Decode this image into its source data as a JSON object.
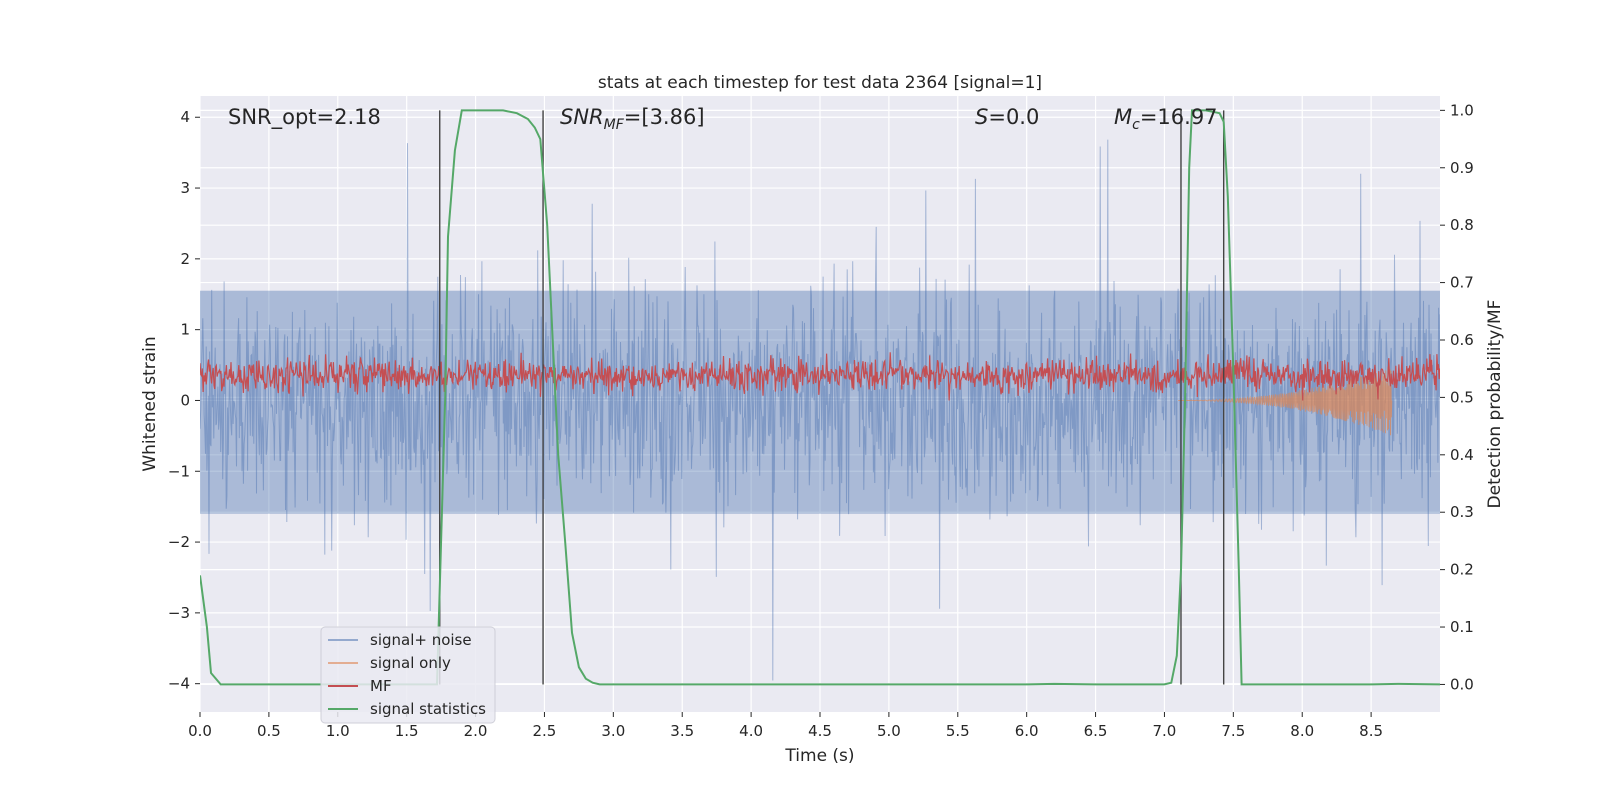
{
  "chart_data": {
    "type": "line",
    "title": "stats at each timestep for test data 2364 [signal=1]",
    "xlabel": "Time (s)",
    "ylabel": "Whitened strain",
    "y2label": "Detection probability/MF",
    "xlim": [
      0.0,
      9.0
    ],
    "ylim": [
      -4.4,
      4.3
    ],
    "y2lim": [
      -0.048,
      1.025
    ],
    "xticks": [
      "0.0",
      "0.5",
      "1.0",
      "1.5",
      "2.0",
      "2.5",
      "3.0",
      "3.5",
      "4.0",
      "4.5",
      "5.0",
      "5.5",
      "6.0",
      "6.5",
      "7.0",
      "7.5",
      "8.0",
      "8.5"
    ],
    "yticks": [
      "4",
      "3",
      "2",
      "1",
      "0",
      "−1",
      "−2",
      "−3",
      "−4"
    ],
    "y2ticks": [
      "1.0",
      "0.9",
      "0.8",
      "0.7",
      "0.6",
      "0.5",
      "0.4",
      "0.3",
      "0.2",
      "0.1",
      "0.0"
    ],
    "grid": true,
    "legend_position": "lower-left",
    "annotations": {
      "snr_opt": "SNR_opt=2.18",
      "snr_mf_main": "SNR",
      "snr_mf_sub": "MF",
      "snr_mf_rest": "=[3.86]",
      "s_main": "S",
      "s_rest": "=0.0",
      "mc_main": "M",
      "mc_sub": "c",
      "mc_rest": "=16.97"
    },
    "vlines_x": [
      1.74,
      2.49,
      7.12,
      7.43
    ],
    "series": [
      {
        "name": "signal+ noise",
        "color": "#4C72B0",
        "kind": "noise",
        "approx_amplitude": 1.6,
        "peak_amplitude": 3.7
      },
      {
        "name": "signal only",
        "color": "#DD8452",
        "kind": "chirp",
        "start_x": 7.1,
        "end_x": 8.65,
        "peak_amplitude": 0.5
      },
      {
        "name": "MF",
        "color": "#C44E52",
        "kind": "noise-band",
        "min": 0.0,
        "max": 0.85,
        "mean": 0.35
      },
      {
        "name": "signal statistics",
        "color": "#55A868",
        "axis": "right",
        "x": [
          0.0,
          0.05,
          0.08,
          0.15,
          0.3,
          0.5,
          1.0,
          1.5,
          1.72,
          1.78,
          1.8,
          1.85,
          1.9,
          2.0,
          2.2,
          2.3,
          2.38,
          2.43,
          2.47,
          2.52,
          2.56,
          2.6,
          2.65,
          2.7,
          2.75,
          2.8,
          2.85,
          2.9,
          3.0,
          4.0,
          5.0,
          6.0,
          6.2,
          6.5,
          7.0,
          7.05,
          7.09,
          7.12,
          7.15,
          7.18,
          7.2,
          7.3,
          7.4,
          7.43,
          7.46,
          7.5,
          7.54,
          7.56,
          7.6,
          8.0,
          8.5,
          8.7,
          9.0
        ],
        "y": [
          0.19,
          0.1,
          0.02,
          0.0,
          0.0,
          0.0,
          0.0,
          0.0,
          0.0,
          0.5,
          0.78,
          0.93,
          1.0,
          1.0,
          1.0,
          0.995,
          0.985,
          0.97,
          0.95,
          0.8,
          0.6,
          0.4,
          0.25,
          0.09,
          0.03,
          0.01,
          0.003,
          0.0,
          0.0,
          0.0,
          0.0,
          0.0,
          0.001,
          0.0,
          0.0,
          0.003,
          0.05,
          0.2,
          0.5,
          0.9,
          1.0,
          1.0,
          0.995,
          0.98,
          0.85,
          0.55,
          0.2,
          0.0,
          0.0,
          0.0,
          0.0,
          0.001,
          0.0
        ]
      }
    ]
  }
}
